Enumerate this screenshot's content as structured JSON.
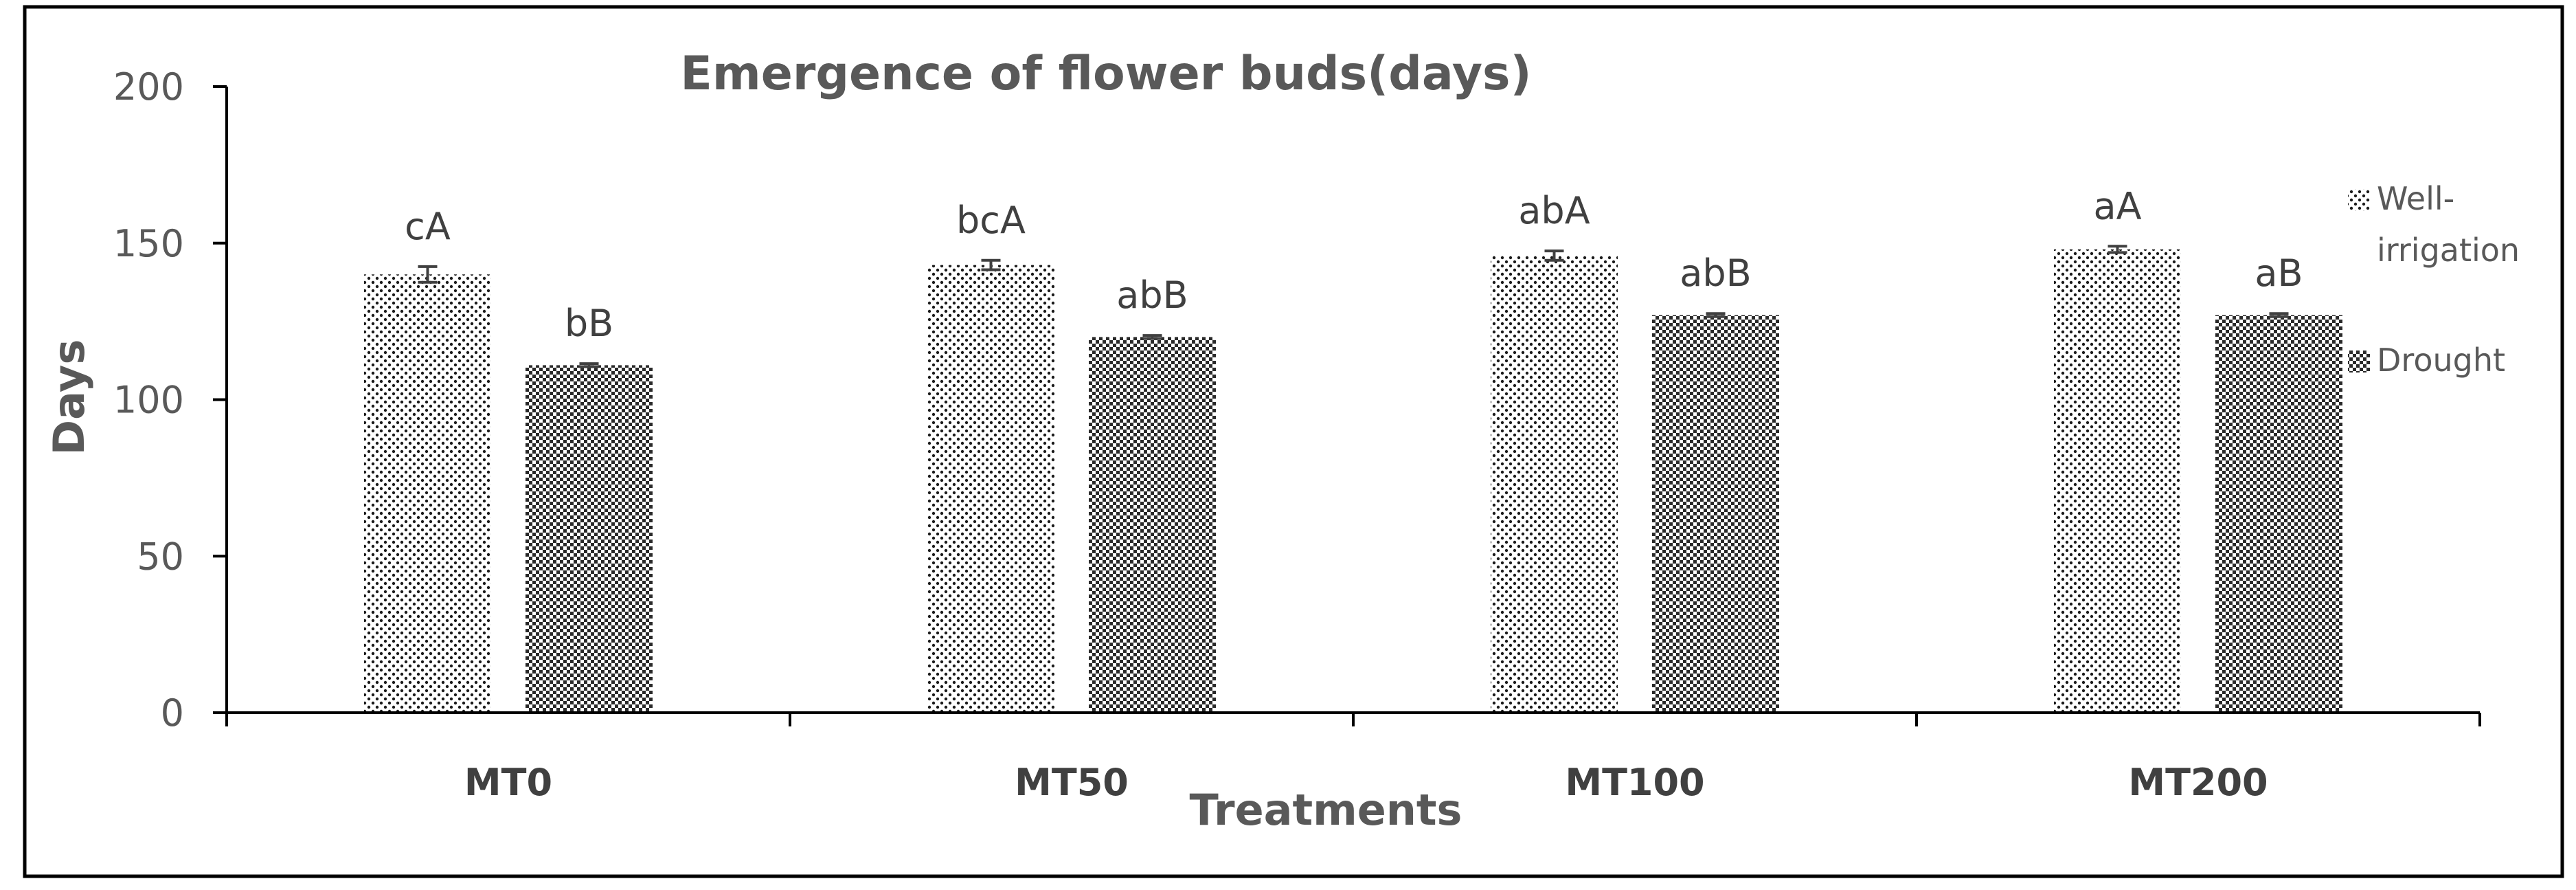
{
  "chart_data": {
    "type": "bar",
    "title": "Emergence of flower buds(days)",
    "xlabel": "Treatments",
    "ylabel": "Days",
    "categories": [
      "MT0",
      "MT50",
      "MT100",
      "MT200"
    ],
    "ylim": [
      0,
      200
    ],
    "yticks": [
      0,
      50,
      100,
      150,
      200
    ],
    "grid": false,
    "legend_position": "right",
    "series": [
      {
        "name": "Well-irrigation",
        "legend_lines": [
          "Well-",
          "irrigation"
        ],
        "pattern": "light-dots",
        "values": [
          140,
          143,
          146,
          148
        ],
        "errors": [
          2.5,
          1.5,
          1.5,
          1
        ],
        "labels": [
          "cA",
          "bcA",
          "abA",
          "aA"
        ]
      },
      {
        "name": "Drought",
        "legend_lines": [
          "Drought"
        ],
        "pattern": "dark-checker",
        "values": [
          111,
          120,
          127,
          127
        ],
        "errors": [
          0.5,
          0.5,
          0.5,
          0.5
        ],
        "labels": [
          "bB",
          "abB",
          "abB",
          "aB"
        ]
      }
    ],
    "colors": {
      "axis": "#000000",
      "text": "#595959",
      "frame": "#000000"
    }
  }
}
